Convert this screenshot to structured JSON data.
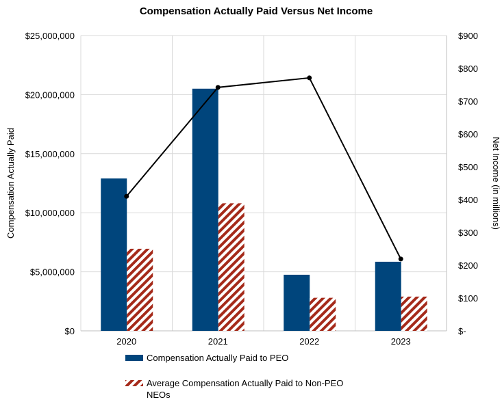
{
  "chart_data": {
    "type": "bar",
    "title": "Compensation Actually Paid Versus Net Income",
    "categories": [
      "2020",
      "2021",
      "2022",
      "2023"
    ],
    "ylabel": "Compensation Actually Paid",
    "y2label": "Net Income (in millions)",
    "ylim": [
      0,
      25000000
    ],
    "y2lim": [
      0,
      900
    ],
    "yticks": [
      "$0",
      "$5,000,000",
      "$10,000,000",
      "$15,000,000",
      "$20,000,000",
      "$25,000,000"
    ],
    "y2ticks": [
      "$-",
      "$100",
      "$200",
      "$300",
      "$400",
      "$500",
      "$600",
      "$700",
      "$800",
      "$900"
    ],
    "grid": true,
    "legend_position": "bottom",
    "series": [
      {
        "name": "Compensation Actually Paid to PEO",
        "kind": "bar",
        "axis": "left",
        "color": "#00457c",
        "values": [
          12900000,
          20500000,
          4750000,
          5850000
        ]
      },
      {
        "name": "Average Compensation Actually Paid to Non-PEO NEOs",
        "kind": "bar",
        "axis": "left",
        "pattern": "diagonal-stripes",
        "color": "#a52a1a",
        "values": [
          6950000,
          10800000,
          2800000,
          2900000
        ]
      },
      {
        "kind": "line",
        "axis": "right",
        "color": "#000000",
        "values": [
          410,
          742,
          771,
          219
        ]
      }
    ]
  }
}
